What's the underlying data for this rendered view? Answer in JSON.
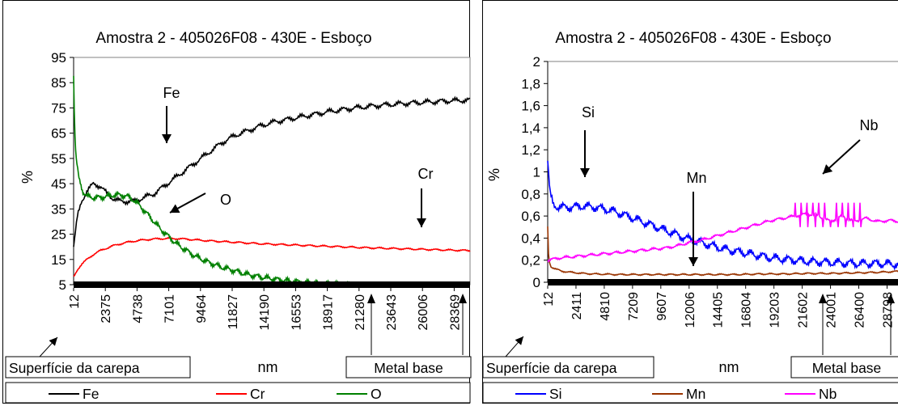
{
  "charts_meta": {
    "tool": "spreadsheet chart export"
  },
  "chart_data": [
    {
      "type": "line",
      "title": "Amostra 2 - 405026F08 - 430E - Esboço",
      "xlabel": "nm",
      "ylabel": "%",
      "ylim": [
        5,
        95
      ],
      "yticks": [
        5,
        15,
        25,
        35,
        45,
        55,
        65,
        75,
        85,
        95
      ],
      "xlim": [
        12,
        29550
      ],
      "xticks": [
        12,
        2375,
        4738,
        7101,
        9464,
        11827,
        14190,
        16553,
        18917,
        21280,
        23643,
        26006,
        28369
      ],
      "legend_position": "bottom",
      "series": [
        {
          "name": "Fe",
          "color": "#000000",
          "x": [
            12,
            300,
            600,
            1000,
            1500,
            2000,
            2500,
            3000,
            3500,
            4000,
            4500,
            5000,
            5500,
            6000,
            6500,
            7000,
            7500,
            8000,
            8500,
            9000,
            9500,
            10000,
            11000,
            12000,
            13000,
            14000,
            15000,
            16000,
            17000,
            18000,
            19000,
            20000,
            21000,
            22000,
            23000,
            24000,
            25000,
            26000,
            27000,
            28000,
            29000,
            29550
          ],
          "values": [
            20,
            32,
            38,
            42,
            45,
            44,
            41,
            39,
            38,
            38,
            38,
            39,
            40,
            41,
            43,
            45,
            47,
            49,
            51,
            53,
            55,
            57,
            61,
            64,
            66,
            68,
            69.5,
            70.5,
            71.5,
            72.5,
            73.5,
            74.3,
            75,
            75.6,
            76.1,
            76.5,
            76.9,
            77.2,
            77.5,
            77.8,
            78,
            78
          ]
        },
        {
          "name": "Cr",
          "color": "#ff0000",
          "x": [
            12,
            300,
            600,
            1000,
            1500,
            2000,
            3000,
            4000,
            5000,
            6000,
            7000,
            8000,
            9000,
            10000,
            12000,
            14000,
            16000,
            18000,
            20000,
            22000,
            24000,
            26000,
            28000,
            29550
          ],
          "values": [
            8,
            11,
            13,
            15,
            17,
            18.5,
            20.5,
            21.8,
            22.6,
            23.1,
            23.3,
            23.2,
            22.8,
            22.4,
            21.8,
            21.2,
            20.8,
            20.4,
            20,
            19.6,
            19.3,
            19,
            18.7,
            18.5
          ]
        },
        {
          "name": "O",
          "color": "#008000",
          "x": [
            12,
            100,
            200,
            400,
            700,
            1000,
            1500,
            2000,
            2500,
            3000,
            3500,
            4000,
            4500,
            5000,
            5500,
            6000,
            6500,
            7000,
            7500,
            8000,
            9000,
            10000,
            11000,
            12000,
            13000,
            14000,
            15000,
            16000,
            17000,
            18000,
            19000,
            20000,
            21000
          ],
          "values": [
            88,
            65,
            55,
            47,
            42,
            40,
            39.5,
            39.5,
            40,
            40.5,
            40.5,
            40,
            38.5,
            36,
            33,
            30,
            27,
            24.5,
            22,
            20,
            16.5,
            14,
            12,
            10.5,
            9,
            8,
            7.2,
            6.5,
            6,
            5.6,
            5.3,
            5.1,
            5
          ]
        }
      ],
      "annotations": [
        "Fe",
        "O",
        "Cr"
      ],
      "boxes": {
        "surface": "Superfície da carepa",
        "base": "Metal base"
      }
    },
    {
      "type": "line",
      "title": "Amostra 2 - 405026F08 - 430E - Esboço",
      "xlabel": "nm",
      "ylabel": "%",
      "ylim": [
        0,
        2
      ],
      "yticks": [
        "0",
        "0,2",
        "0,4",
        "0,6",
        "0,8",
        "1",
        "1,2",
        "1,4",
        "1,6",
        "1,8",
        "2"
      ],
      "xlim": [
        12,
        30000
      ],
      "xticks": [
        12,
        2411,
        4810,
        7209,
        9607,
        12006,
        14405,
        16804,
        19203,
        21602,
        24001,
        26400,
        28798
      ],
      "legend_position": "bottom",
      "series": [
        {
          "name": "Si",
          "color": "#0000ff",
          "x": [
            12,
            200,
            500,
            1000,
            2000,
            3000,
            4000,
            5000,
            6000,
            7000,
            8000,
            9000,
            10000,
            11000,
            12000,
            13000,
            14000,
            15000,
            16000,
            17000,
            18000,
            19000,
            20000,
            22000,
            24000,
            26000,
            28000,
            30000
          ],
          "values": [
            1.1,
            0.8,
            0.7,
            0.68,
            0.68,
            0.69,
            0.68,
            0.66,
            0.63,
            0.59,
            0.55,
            0.51,
            0.47,
            0.43,
            0.39,
            0.36,
            0.33,
            0.3,
            0.28,
            0.26,
            0.24,
            0.22,
            0.21,
            0.19,
            0.18,
            0.17,
            0.17,
            0.16
          ]
        },
        {
          "name": "Mn",
          "color": "#993300",
          "x": [
            12,
            100,
            300,
            700,
            1200,
            2000,
            3000,
            4000,
            6000,
            8000,
            10000,
            12000,
            14000,
            16000,
            18000,
            20000,
            22000,
            24000,
            26000,
            28000,
            30000
          ],
          "values": [
            0.5,
            0.2,
            0.14,
            0.12,
            0.1,
            0.09,
            0.08,
            0.075,
            0.07,
            0.07,
            0.07,
            0.07,
            0.07,
            0.07,
            0.075,
            0.075,
            0.08,
            0.08,
            0.085,
            0.09,
            0.1
          ]
        },
        {
          "name": "Nb",
          "color": "#ff00ff",
          "x": [
            12,
            1000,
            2000,
            3000,
            4000,
            5000,
            6000,
            7000,
            8000,
            9000,
            10000,
            11000,
            12000,
            13000,
            14000,
            15000,
            16000,
            17000,
            18000,
            19000,
            20000,
            21000,
            22000,
            23000,
            24000,
            25000,
            26000,
            27000,
            28000,
            29000,
            30000
          ],
          "values": [
            0.2,
            0.22,
            0.23,
            0.24,
            0.25,
            0.26,
            0.27,
            0.28,
            0.29,
            0.3,
            0.31,
            0.33,
            0.36,
            0.38,
            0.41,
            0.44,
            0.47,
            0.5,
            0.53,
            0.56,
            0.58,
            0.6,
            0.62,
            0.6,
            0.55,
            0.6,
            0.55,
            0.58,
            0.55,
            0.56,
            0.55
          ]
        }
      ],
      "annotations": [
        "Si",
        "Mn",
        "Nb"
      ],
      "boxes": {
        "surface": "Superfície da carepa",
        "base": "Metal base"
      }
    }
  ]
}
